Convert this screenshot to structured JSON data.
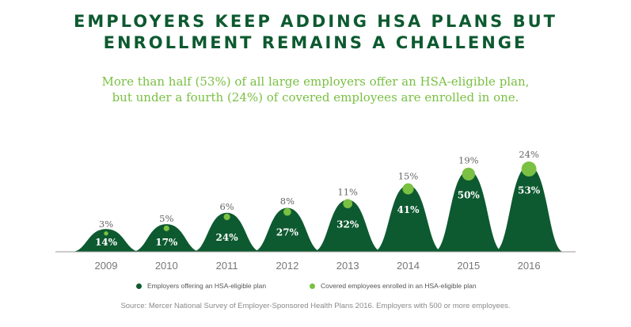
{
  "title_line1": "EMPLOYERS KEEP ADDING HSA PLANS BUT",
  "title_line2": "ENROLLMENT REMAINS A CHALLENGE",
  "subtitle_line1": "More than half (53%) of all large employers offer an HSA-eligible plan,",
  "subtitle_line2": "but under a fourth (24%) of covered employees are enrolled in one.",
  "legend": {
    "offering_label": "Employers offering an HSA-eligible plan",
    "enrolled_label": "Covered employees enrolled in an HSA-eligible plan"
  },
  "source": "Source: Mercer National Survey of Employer-Sponsored Health Plans 2016. Employers with 500 or more employees.",
  "colors": {
    "dark_green": "#0d5a30",
    "light_green": "#7ac043",
    "title": "#0d5a30",
    "axis": "#999999"
  },
  "chart_data": {
    "type": "area",
    "categories": [
      "2009",
      "2010",
      "2011",
      "2012",
      "2013",
      "2014",
      "2015",
      "2016"
    ],
    "series": [
      {
        "name": "Employers offering an HSA-eligible plan",
        "values": [
          14,
          17,
          24,
          27,
          32,
          41,
          50,
          53
        ],
        "labels": [
          "14%",
          "17%",
          "24%",
          "27%",
          "32%",
          "41%",
          "50%",
          "53%"
        ]
      },
      {
        "name": "Covered employees enrolled in an HSA-eligible plan",
        "values": [
          3,
          5,
          6,
          8,
          11,
          15,
          19,
          24
        ],
        "labels": [
          "3%",
          "5%",
          "6%",
          "8%",
          "11%",
          "15%",
          "19%",
          "24%"
        ]
      }
    ],
    "title": "EMPLOYERS KEEP ADDING HSA PLANS BUT ENROLLMENT REMAINS A CHALLENGE",
    "legend_position": "bottom",
    "grid": false
  }
}
